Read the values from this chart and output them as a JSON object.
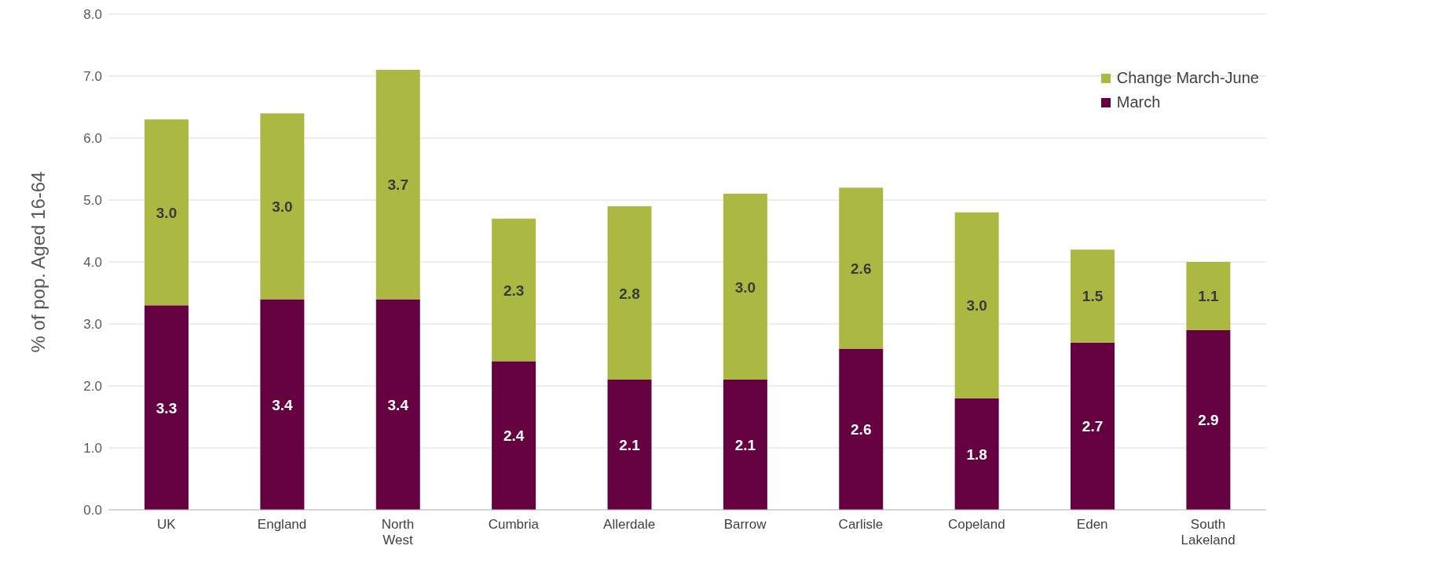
{
  "chart_data": {
    "type": "bar",
    "stacked": true,
    "ylabel": "% of pop. Aged 16-64",
    "categories": [
      "UK",
      "England",
      "North West",
      "Cumbria",
      "Allerdale",
      "Barrow",
      "Carlisle",
      "Copeland",
      "Eden",
      "South Lakeland"
    ],
    "series": [
      {
        "name": "March",
        "color": "#650041",
        "values": [
          3.3,
          3.4,
          3.4,
          2.4,
          2.1,
          2.1,
          2.6,
          1.8,
          2.7,
          2.9
        ],
        "value_labels": [
          "3.3",
          "3.4",
          "3.4",
          "2.4",
          "2.1",
          "2.1",
          "2.6",
          "1.8",
          "2.7",
          "2.9"
        ]
      },
      {
        "name": "Change March-June",
        "color": "#abb842",
        "values": [
          3.0,
          3.0,
          3.7,
          2.3,
          2.8,
          3.0,
          2.6,
          3.0,
          1.5,
          1.1
        ],
        "value_labels": [
          "3.0",
          "3.0",
          "3.7",
          "2.3",
          "2.8",
          "3.0",
          "2.6",
          "3.0",
          "1.5",
          "1.1"
        ]
      }
    ],
    "ylim": [
      0,
      8
    ],
    "yticks": [
      {
        "value": 0,
        "label": "0.0"
      },
      {
        "value": 1,
        "label": "1.0"
      },
      {
        "value": 2,
        "label": "2.0"
      },
      {
        "value": 3,
        "label": "3.0"
      },
      {
        "value": 4,
        "label": "4.0"
      },
      {
        "value": 5,
        "label": "5.0"
      },
      {
        "value": 6,
        "label": "6.0"
      },
      {
        "value": 7,
        "label": "7.0"
      },
      {
        "value": 8,
        "label": "8.0"
      }
    ],
    "grid": "y",
    "legend": "top right"
  }
}
